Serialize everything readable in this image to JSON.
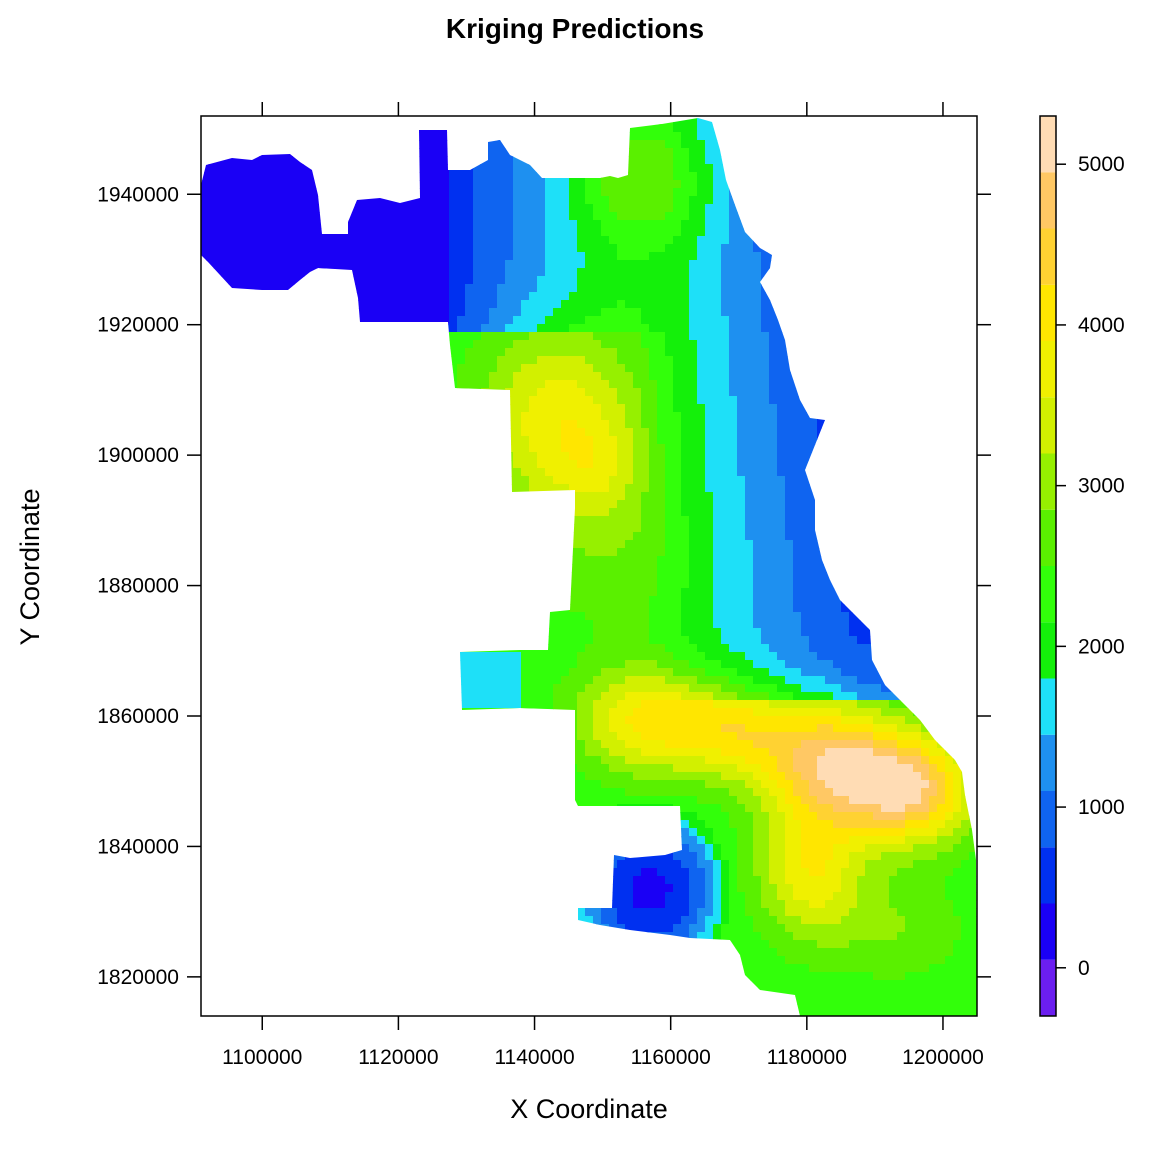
{
  "chart_data": {
    "type": "heatmap",
    "title": "Kriging Predictions",
    "xlabel": "X Coordinate",
    "ylabel": "Y Coordinate",
    "xlim": [
      1091000,
      1205000
    ],
    "ylim": [
      1814000,
      1952000
    ],
    "x_ticks": [
      1100000,
      1120000,
      1140000,
      1160000,
      1180000,
      1200000
    ],
    "x_tick_labels": [
      "1100000",
      "1120000",
      "1140000",
      "1160000",
      "1180000",
      "1200000"
    ],
    "y_ticks": [
      1820000,
      1840000,
      1860000,
      1880000,
      1900000,
      1920000,
      1940000
    ],
    "y_tick_labels": [
      "1820000",
      "1840000",
      "1860000",
      "1880000",
      "1900000",
      "1920000",
      "1940000"
    ],
    "colorbar": {
      "range": [
        -300,
        5300
      ],
      "ticks": [
        0,
        1000,
        2000,
        3000,
        4000,
        5000
      ],
      "tick_labels": [
        "0",
        "1000",
        "2000",
        "3000",
        "4000",
        "5000"
      ],
      "levels": [
        -300,
        50,
        400,
        750,
        1100,
        1450,
        1800,
        2150,
        2500,
        2850,
        3200,
        3550,
        3900,
        4250,
        4600,
        4950,
        5300
      ],
      "colors": [
        "#6B1EF0",
        "#1A00F5",
        "#0030F0",
        "#0F64F0",
        "#1E90F0",
        "#1EE0F8",
        "#14F00A",
        "#32FF0A",
        "#5AF000",
        "#96F000",
        "#D2F000",
        "#F0F000",
        "#FFE600",
        "#FFD232",
        "#FFC864",
        "#FFDCB4"
      ]
    },
    "grid": false,
    "legend": "right colorbar"
  }
}
